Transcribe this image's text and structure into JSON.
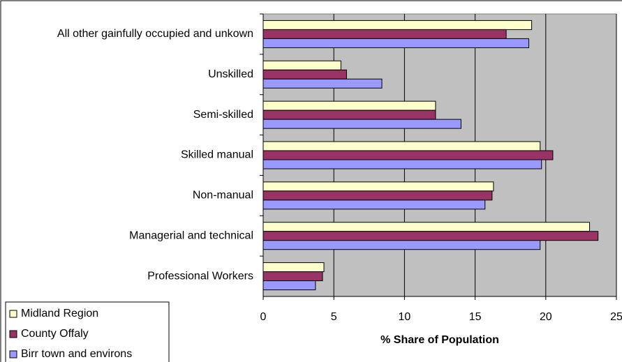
{
  "chart_data": {
    "type": "hbar",
    "categories": [
      "All other gainfully occupied and unkown",
      "Unskilled",
      "Semi-skilled",
      "Skilled manual",
      "Non-manual",
      "Managerial and technical",
      "Professional Workers"
    ],
    "series": [
      {
        "name": "Midland Region",
        "color": "#ffffcc",
        "values": [
          19.0,
          5.5,
          12.2,
          19.6,
          16.3,
          23.1,
          4.3
        ]
      },
      {
        "name": "County Offaly",
        "color": "#993366",
        "values": [
          17.2,
          5.9,
          12.2,
          20.5,
          16.2,
          23.7,
          4.2
        ]
      },
      {
        "name": "Birr town and environs",
        "color": "#9999ff",
        "values": [
          18.8,
          8.4,
          14.0,
          19.7,
          15.7,
          19.6,
          3.7
        ]
      }
    ],
    "x_label": "% Share of Population",
    "xlim": [
      0,
      25
    ],
    "xticks": [
      0,
      5,
      10,
      15,
      20,
      25
    ],
    "grid": true,
    "plot_background": "#c0c0c0",
    "legend": "bottom-left"
  }
}
